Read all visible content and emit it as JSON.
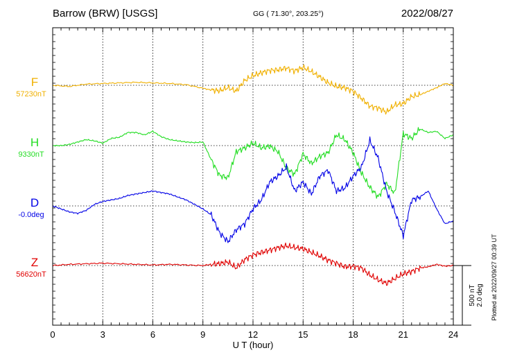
{
  "header": {
    "station": "Barrow (BRW)  [USGS]",
    "coords": "GG ( 71.30°, 203.25°)",
    "date": "2022/08/27"
  },
  "side_note": "Plotted at 2022/09/27 00:39 UT",
  "scale_bar": {
    "line1": "500 nT",
    "line2": "2.0 deg"
  },
  "chart_data": {
    "type": "line",
    "xlabel": "U T (hour)",
    "xlim": [
      0,
      24
    ],
    "xticks": [
      0,
      3,
      6,
      9,
      12,
      15,
      18,
      21,
      24
    ],
    "grid": true,
    "scale_nT_per_bar": 500,
    "scale_deg_per_bar": 2.0,
    "series": [
      {
        "name": "F",
        "baseline_label": "57230nT",
        "color": "#f0b000",
        "x": [
          0,
          1,
          2,
          3,
          4,
          5,
          6,
          7,
          8,
          9,
          9.5,
          10,
          10.5,
          11,
          11.5,
          12,
          12.5,
          13,
          13.5,
          14,
          14.5,
          15,
          15.5,
          16,
          16.5,
          17,
          17.5,
          18,
          18.5,
          19,
          19.5,
          20,
          20.5,
          21,
          21.5,
          22,
          22.5,
          23,
          23.5,
          24
        ],
        "y": [
          0,
          -10,
          10,
          15,
          20,
          25,
          20,
          15,
          5,
          -25,
          -40,
          -45,
          -20,
          -50,
          40,
          80,
          105,
          125,
          130,
          145,
          120,
          150,
          115,
          70,
          20,
          -10,
          -20,
          -50,
          -110,
          -175,
          -190,
          -225,
          -165,
          -155,
          -95,
          -80,
          -50,
          -20,
          15,
          0
        ]
      },
      {
        "name": "H",
        "baseline_label": "9330nT",
        "color": "#22dd22",
        "x": [
          0,
          0.5,
          1,
          1.5,
          2,
          2.5,
          3,
          3.5,
          4,
          4.5,
          5,
          5.5,
          6,
          6.5,
          7,
          7.5,
          8,
          8.5,
          9,
          9.5,
          10,
          10.5,
          11,
          11.5,
          12,
          12.5,
          13,
          13.5,
          14,
          14.5,
          15,
          15.5,
          16,
          16.5,
          17,
          17.5,
          18,
          18.5,
          19,
          19.5,
          20,
          20.5,
          21,
          21.5,
          22,
          22.5,
          23,
          23.5,
          24
        ],
        "y": [
          0,
          0,
          10,
          30,
          50,
          40,
          20,
          60,
          70,
          110,
          110,
          90,
          120,
          75,
          50,
          40,
          30,
          25,
          30,
          -120,
          -250,
          -270,
          -50,
          -20,
          20,
          -20,
          -5,
          -50,
          -190,
          -240,
          -70,
          -150,
          -90,
          -60,
          90,
          50,
          -60,
          -230,
          -350,
          -430,
          -320,
          -400,
          100,
          60,
          140,
          110,
          120,
          60,
          90
        ]
      },
      {
        "name": "D",
        "baseline_label": "-0.0deg",
        "color": "#0000e6",
        "x": [
          0,
          0.5,
          1,
          1.5,
          2,
          2.5,
          3,
          3.5,
          4,
          4.5,
          5,
          5.5,
          6,
          6.5,
          7,
          7.5,
          8,
          8.5,
          9,
          9.5,
          10,
          10.5,
          11,
          11.5,
          12,
          12.5,
          13,
          13.5,
          14,
          14.5,
          15,
          15.5,
          16,
          16.5,
          17,
          17.5,
          18,
          18.5,
          19,
          19.5,
          20,
          20.5,
          21,
          21.5,
          22,
          22.5,
          23,
          23.5,
          24
        ],
        "y": [
          0,
          -0.1,
          -0.2,
          -0.25,
          -0.15,
          0.05,
          0.15,
          0.2,
          0.25,
          0.35,
          0.4,
          0.45,
          0.5,
          0.45,
          0.4,
          0.3,
          0.2,
          0.05,
          -0.1,
          -0.3,
          -0.9,
          -1.2,
          -0.8,
          -0.6,
          -0.1,
          0.2,
          0.8,
          1.0,
          1.3,
          0.5,
          0.8,
          0.4,
          1.0,
          1.2,
          0.5,
          0.6,
          1.0,
          1.3,
          2.2,
          1.6,
          0.5,
          -0.2,
          -1.0,
          0.2,
          0.3,
          0.5,
          -0.1,
          -0.6,
          -0.5
        ]
      },
      {
        "name": "Z",
        "baseline_label": "56620nT",
        "color": "#e00000",
        "x": [
          0,
          1,
          2,
          3,
          4,
          5,
          6,
          7,
          8,
          9,
          9.5,
          10,
          10.5,
          11,
          11.5,
          12,
          12.5,
          13,
          13.5,
          14,
          14.5,
          15,
          15.5,
          16,
          16.5,
          17,
          17.5,
          18,
          18.5,
          19,
          19.5,
          20,
          20.5,
          21,
          21.5,
          22,
          22.5,
          23,
          23.5,
          24
        ],
        "y": [
          0,
          10,
          15,
          20,
          15,
          10,
          5,
          10,
          5,
          0,
          10,
          15,
          30,
          -20,
          50,
          90,
          110,
          130,
          150,
          165,
          150,
          140,
          110,
          80,
          45,
          20,
          -10,
          -5,
          -20,
          -80,
          -120,
          -150,
          -110,
          -70,
          -50,
          -20,
          -10,
          10,
          -5,
          0
        ]
      }
    ]
  }
}
